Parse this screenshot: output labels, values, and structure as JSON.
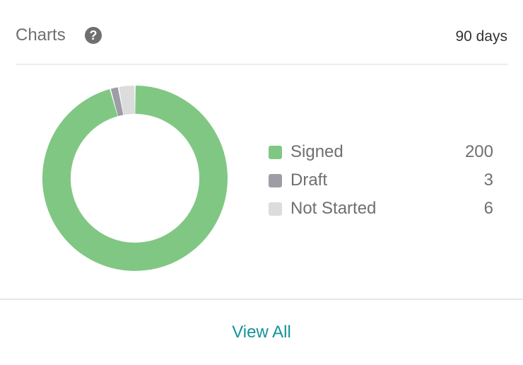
{
  "header": {
    "title": "Charts",
    "help_icon": "question-circle-icon",
    "range": "90 days"
  },
  "chart_data": {
    "type": "pie",
    "style": "donut",
    "categories": [
      "Signed",
      "Draft",
      "Not Started"
    ],
    "values": [
      200,
      3,
      6
    ],
    "colors": [
      "#81c784",
      "#9d9da6",
      "#dcdcdc"
    ],
    "legend": "right"
  },
  "footer": {
    "view_all": "View All"
  }
}
